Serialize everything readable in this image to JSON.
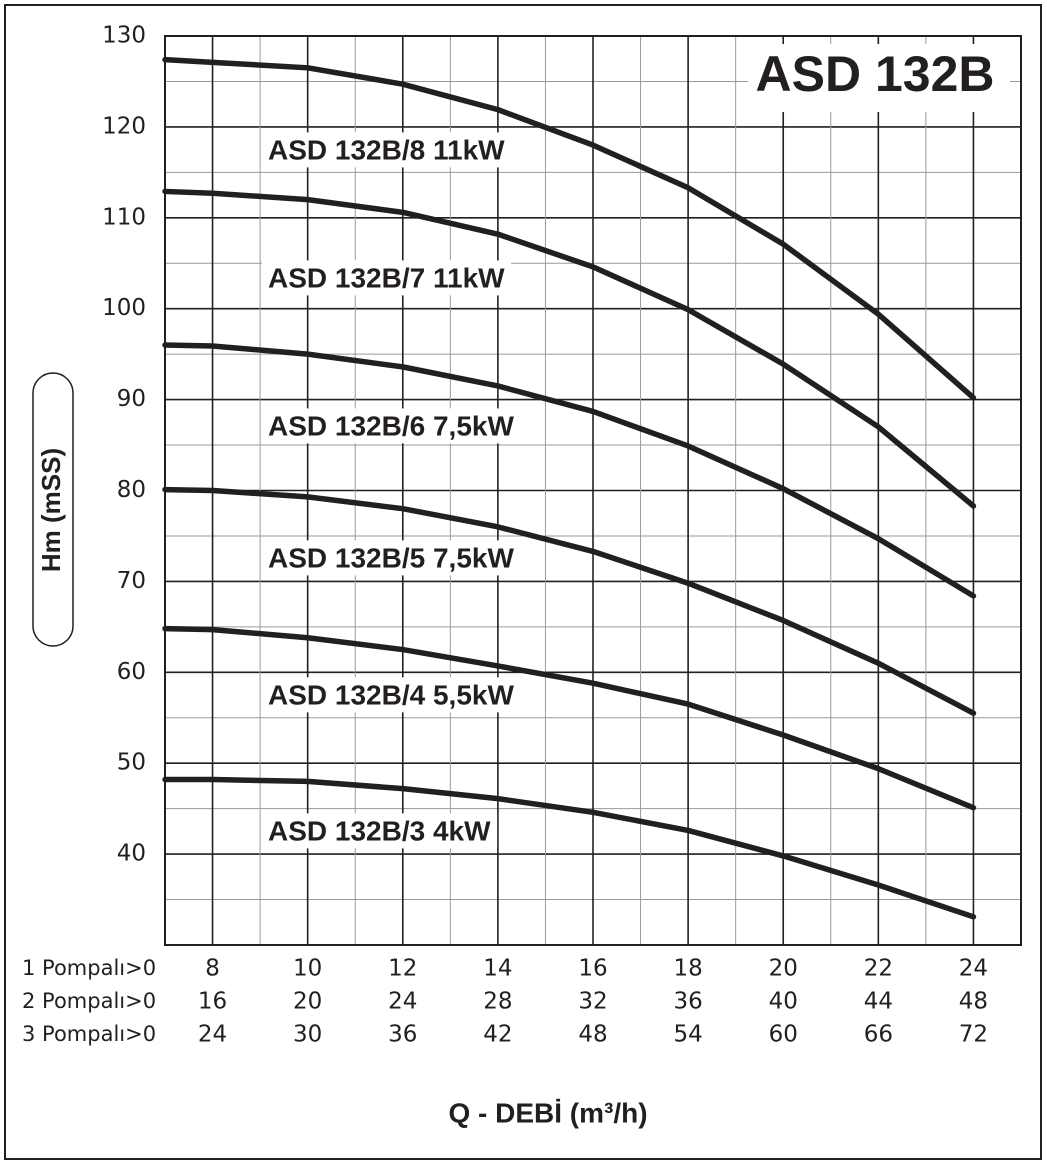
{
  "chart_data": {
    "type": "line",
    "title": "ASD 132B",
    "ylabel": "Hm (mSS)",
    "xlabel": "Q - DEBİ (m³/h)",
    "x": [
      7,
      8,
      10,
      12,
      14,
      16,
      18,
      20,
      22,
      24
    ],
    "xlim": [
      7,
      25
    ],
    "ylim": [
      30,
      130
    ],
    "xticks": [
      8,
      10,
      12,
      14,
      16,
      18,
      20,
      22,
      24
    ],
    "yticks": [
      40,
      50,
      60,
      70,
      80,
      90,
      100,
      110,
      120,
      130
    ],
    "grid": true,
    "minor_grid": true,
    "color": "#231f20",
    "x_rows": [
      {
        "label": "1 Pompalı>0",
        "ticks": [
          8,
          10,
          12,
          14,
          16,
          18,
          20,
          22,
          24
        ]
      },
      {
        "label": "2 Pompalı>0",
        "ticks": [
          16,
          20,
          24,
          28,
          32,
          36,
          40,
          44,
          48
        ]
      },
      {
        "label": "3 Pompalı>0",
        "ticks": [
          24,
          30,
          36,
          42,
          48,
          54,
          60,
          66,
          72
        ]
      }
    ],
    "series": [
      {
        "name": "ASD 132B/8 11kW",
        "values": [
          127.4,
          127.1,
          126.5,
          124.7,
          121.9,
          118.0,
          113.3,
          107.1,
          99.4,
          90.2
        ]
      },
      {
        "name": "ASD 132B/7 11kW",
        "values": [
          112.9,
          112.7,
          112.0,
          110.6,
          108.2,
          104.6,
          99.9,
          93.9,
          87.0,
          78.3
        ]
      },
      {
        "name": "ASD 132B/6 7,5kW",
        "values": [
          96.0,
          95.9,
          95.0,
          93.6,
          91.5,
          88.7,
          84.9,
          80.2,
          74.7,
          68.4
        ]
      },
      {
        "name": "ASD 132B/5 7,5kW",
        "values": [
          80.1,
          80.0,
          79.3,
          78.0,
          76.0,
          73.3,
          69.8,
          65.7,
          61.0,
          55.5
        ]
      },
      {
        "name": "ASD 132B/4 5,5kW",
        "values": [
          64.8,
          64.7,
          63.8,
          62.5,
          60.7,
          58.8,
          56.5,
          53.1,
          49.4,
          45.1
        ]
      },
      {
        "name": "ASD 132B/3 4kW",
        "values": [
          48.2,
          48.2,
          48.0,
          47.2,
          46.1,
          44.6,
          42.6,
          39.8,
          36.6,
          33.1
        ]
      }
    ]
  }
}
